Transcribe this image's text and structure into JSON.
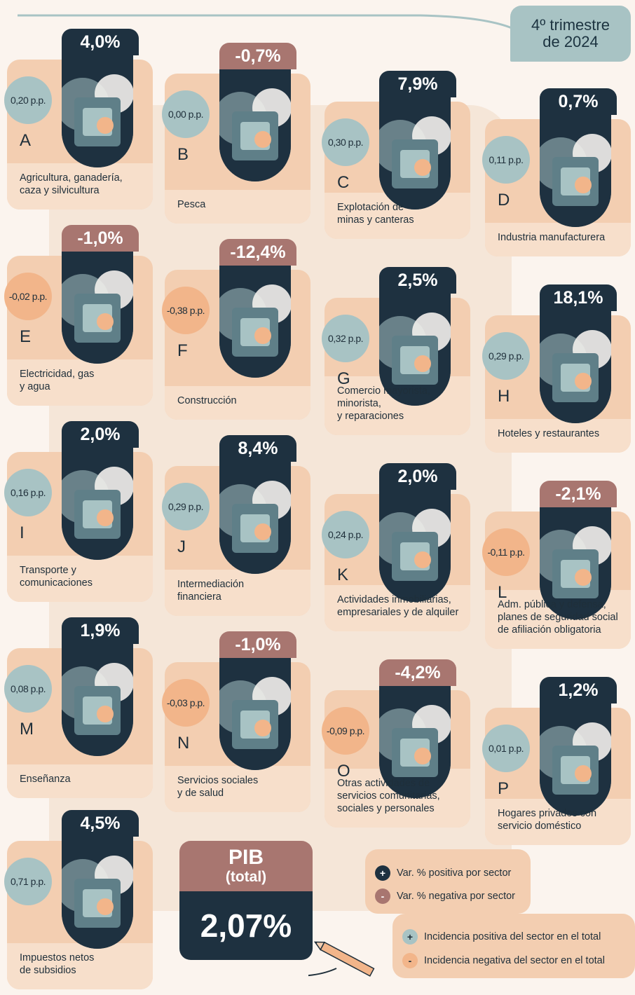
{
  "period": {
    "line1": "4º trimestre",
    "line2": "de 2024"
  },
  "sectors": [
    {
      "letter": "A",
      "name": "Agricultura, ganadería,\ncaza y silvicultura",
      "var": "4,0%",
      "inc": "0,20 p.p.",
      "var_sign": "pos",
      "inc_sign": "pos",
      "icon": "cow-wheat-icon"
    },
    {
      "letter": "B",
      "name": "Pesca",
      "var": "-0,7%",
      "inc": "0,00 p.p.",
      "var_sign": "neg",
      "inc_sign": "pos",
      "icon": "fish-anchor-icon"
    },
    {
      "letter": "C",
      "name": "Explotación de\nminas y canteras",
      "var": "7,9%",
      "inc": "0,30 p.p.",
      "var_sign": "pos",
      "inc_sign": "pos",
      "icon": "oil-pump-icon"
    },
    {
      "letter": "D",
      "name": "Industria manufacturera",
      "var": "0,7%",
      "inc": "0,11 p.p.",
      "var_sign": "pos",
      "inc_sign": "pos",
      "icon": "gears-icon"
    },
    {
      "letter": "E",
      "name": "Electricidad, gas\ny agua",
      "var": "-1,0%",
      "inc": "-0,02 p.p.",
      "var_sign": "neg",
      "inc_sign": "neg",
      "icon": "power-tower-icon"
    },
    {
      "letter": "F",
      "name": "Construcción",
      "var": "-12,4%",
      "inc": "-0,38 p.p.",
      "var_sign": "neg",
      "inc_sign": "neg",
      "icon": "mixer-truck-icon"
    },
    {
      "letter": "G",
      "name": "Comercio mayorista,\nminorista,\ny reparaciones",
      "var": "2,5%",
      "inc": "0,32 p.p.",
      "var_sign": "pos",
      "inc_sign": "pos",
      "icon": "shopping-cart-icon"
    },
    {
      "letter": "H",
      "name": "Hoteles y restaurantes",
      "var": "18,1%",
      "inc": "0,29 p.p.",
      "var_sign": "pos",
      "inc_sign": "pos",
      "icon": "hotel-plate-icon"
    },
    {
      "letter": "I",
      "name": "Transporte y\ncomunicaciones",
      "var": "2,0%",
      "inc": "0,16 p.p.",
      "var_sign": "pos",
      "inc_sign": "pos",
      "icon": "bus-phone-icon"
    },
    {
      "letter": "J",
      "name": "Intermediación\nfinanciera",
      "var": "8,4%",
      "inc": "0,29 p.p.",
      "var_sign": "pos",
      "inc_sign": "pos",
      "icon": "bank-icon"
    },
    {
      "letter": "K",
      "name": "Actividades inmobiliarias,\nempresariales y de alquiler",
      "var": "2,0%",
      "inc": "0,24 p.p.",
      "var_sign": "pos",
      "inc_sign": "pos",
      "icon": "key-monitor-icon"
    },
    {
      "letter": "L",
      "name": "Adm. pública y defensa;\nplanes de seguridad social\nde afiliación obligatoria",
      "var": "-2,1%",
      "inc": "-0,11 p.p.",
      "var_sign": "neg",
      "inc_sign": "neg",
      "icon": "capitol-icon"
    },
    {
      "letter": "M",
      "name": "Enseñanza",
      "var": "1,9%",
      "inc": "0,08 p.p.",
      "var_sign": "pos",
      "inc_sign": "pos",
      "icon": "books-pencil-icon"
    },
    {
      "letter": "N",
      "name": "Servicios sociales\ny de salud",
      "var": "-1,0%",
      "inc": "-0,03 p.p.",
      "var_sign": "neg",
      "inc_sign": "neg",
      "icon": "medical-kit-icon"
    },
    {
      "letter": "O",
      "name": "Otras actividades de\nservicios comunitarias,\nsociales y personales",
      "var": "-4,2%",
      "inc": "-0,09 p.p.",
      "var_sign": "neg",
      "inc_sign": "neg",
      "icon": "theater-masks-icon"
    },
    {
      "letter": "P",
      "name": "Hogares privados con\nservicio doméstico",
      "var": "1,2%",
      "inc": "0,01 p.p.",
      "var_sign": "pos",
      "inc_sign": "pos",
      "icon": "garden-tools-icon"
    },
    {
      "letter": "",
      "name": "Impuestos netos\nde subsidios",
      "var": "4,5%",
      "inc": "0,71 p.p.",
      "var_sign": "pos",
      "inc_sign": "pos",
      "icon": "coins-icon"
    }
  ],
  "pib": {
    "title": "PIB",
    "subtitle": "(total)",
    "value": "2,07%"
  },
  "legend": {
    "var_pos": {
      "symbol": "+",
      "label": "Var. % positiva por sector"
    },
    "var_neg": {
      "symbol": "-",
      "label": "Var. % negativa por sector"
    },
    "inc_pos": {
      "symbol": "+",
      "label": "Incidencia positiva del sector en el total"
    },
    "inc_neg": {
      "symbol": "-",
      "label": "Incidencia negativa del sector en el total"
    }
  },
  "colors": {
    "dark": "#1e3140",
    "mauve": "#a87670",
    "teal": "#a8c3c4",
    "orange": "#f2b58a",
    "peach": "#f3ceb1"
  }
}
